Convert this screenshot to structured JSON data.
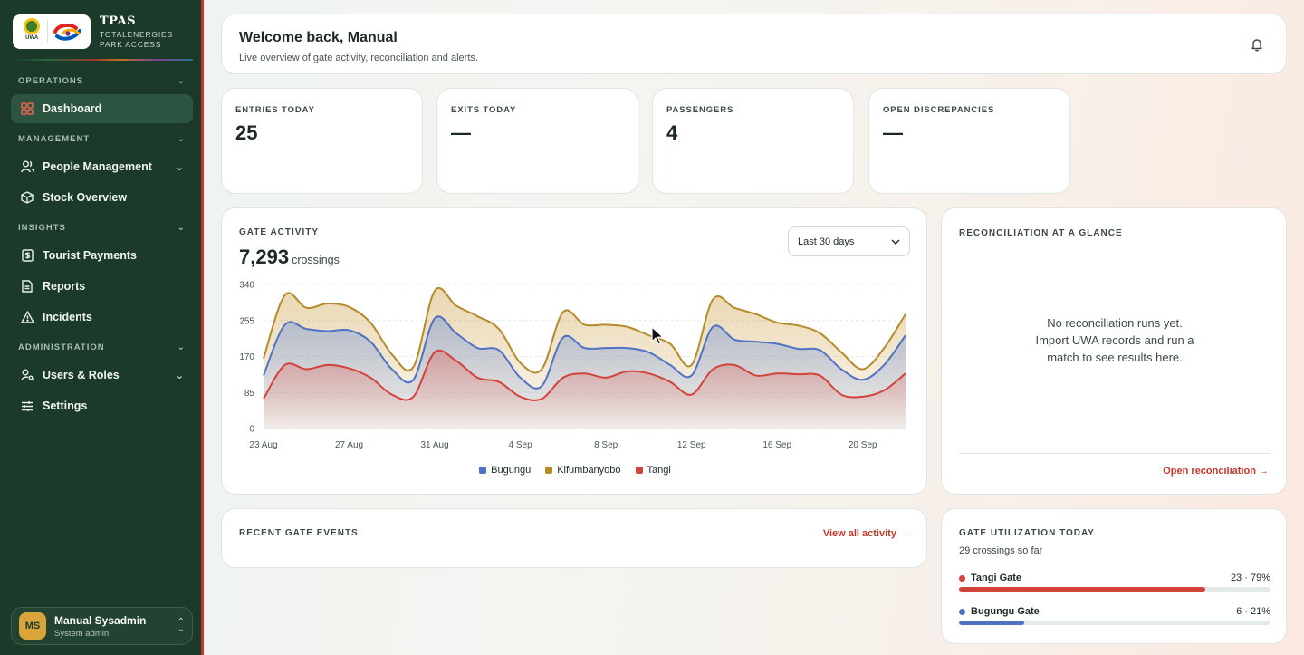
{
  "brand": {
    "title": "TPAS",
    "sub_line1": "TOTALENERGIES",
    "sub_line2": "PARK ACCESS",
    "uwa_logo_text": "UWA"
  },
  "sidebar": {
    "sections": [
      {
        "label": "OPERATIONS"
      },
      {
        "label": "MANAGEMENT"
      },
      {
        "label": "INSIGHTS"
      },
      {
        "label": "ADMINISTRATION"
      }
    ],
    "items": [
      {
        "label": "Dashboard",
        "icon": "grid-icon",
        "active": true
      },
      {
        "label": "People Management",
        "icon": "users-icon"
      },
      {
        "label": "Stock Overview",
        "icon": "box-icon"
      },
      {
        "label": "Tourist Payments",
        "icon": "receipt-icon"
      },
      {
        "label": "Reports",
        "icon": "document-icon"
      },
      {
        "label": "Incidents",
        "icon": "warning-icon"
      },
      {
        "label": "Users & Roles",
        "icon": "user-key-icon"
      },
      {
        "label": "Settings",
        "icon": "sliders-icon"
      }
    ],
    "user": {
      "initials": "MS",
      "name": "Manual Sysadmin",
      "role": "System admin"
    }
  },
  "header": {
    "title": "Welcome back, Manual",
    "subtitle": "Live overview of gate activity, reconciliation and alerts."
  },
  "stats": [
    {
      "label": "ENTRIES TODAY",
      "value": "25"
    },
    {
      "label": "EXITS TODAY",
      "value": "—"
    },
    {
      "label": "PASSENGERS",
      "value": "4"
    },
    {
      "label": "OPEN DISCREPANCIES",
      "value": "—"
    }
  ],
  "gate_activity": {
    "label": "GATE ACTIVITY",
    "total": "7,293",
    "unit": "crossings",
    "range": "Last 30 days"
  },
  "chart_data": {
    "type": "area",
    "stacked": true,
    "y_ticks": [
      0,
      85,
      170,
      255,
      340
    ],
    "ylim": [
      0,
      340
    ],
    "x_tick_labels": [
      "23 Aug",
      "27 Aug",
      "31 Aug",
      "4 Sep",
      "8 Sep",
      "12 Sep",
      "16 Sep",
      "20 Sep"
    ],
    "x": [
      "23 Aug",
      "24 Aug",
      "25 Aug",
      "26 Aug",
      "27 Aug",
      "28 Aug",
      "29 Aug",
      "30 Aug",
      "31 Aug",
      "1 Sep",
      "2 Sep",
      "3 Sep",
      "4 Sep",
      "5 Sep",
      "6 Sep",
      "7 Sep",
      "8 Sep",
      "9 Sep",
      "10 Sep",
      "11 Sep",
      "12 Sep",
      "13 Sep",
      "14 Sep",
      "15 Sep",
      "16 Sep",
      "17 Sep",
      "18 Sep",
      "19 Sep",
      "20 Sep",
      "21 Sep",
      "22 Sep"
    ],
    "series": [
      {
        "name": "Tangi",
        "color": "#d2433a",
        "values": [
          70,
          150,
          140,
          150,
          142,
          120,
          80,
          75,
          180,
          160,
          120,
          110,
          75,
          70,
          120,
          130,
          120,
          135,
          130,
          110,
          80,
          140,
          150,
          125,
          130,
          128,
          125,
          80,
          75,
          90,
          130
        ]
      },
      {
        "name": "Bugungu",
        "color": "#4f72c4",
        "values": [
          55,
          95,
          95,
          80,
          90,
          85,
          60,
          40,
          80,
          65,
          70,
          75,
          45,
          30,
          95,
          60,
          70,
          55,
          50,
          40,
          45,
          100,
          60,
          80,
          70,
          60,
          60,
          60,
          40,
          60,
          90
        ]
      },
      {
        "name": "Kifumbanyobo",
        "color": "#b58a2a",
        "values": [
          40,
          70,
          50,
          65,
          55,
          45,
          35,
          30,
          65,
          65,
          75,
          50,
          35,
          40,
          60,
          55,
          55,
          50,
          40,
          50,
          25,
          65,
          75,
          65,
          50,
          55,
          40,
          40,
          25,
          40,
          50
        ]
      }
    ]
  },
  "reconciliation": {
    "label": "RECONCILIATION AT A GLANCE",
    "empty_line1": "No reconciliation runs yet.",
    "empty_line2": "Import UWA records and run a",
    "empty_line3": "match to see results here.",
    "link": "Open reconciliation →"
  },
  "recent_events": {
    "label": "RECENT GATE EVENTS",
    "link": "View all activity →"
  },
  "utilization": {
    "label": "GATE UTILIZATION TODAY",
    "subtitle": "29 crossings so far",
    "gates": [
      {
        "name": "Tangi Gate",
        "count": "23",
        "percent_text": "79%",
        "percent": 79,
        "color": "#d2433a"
      },
      {
        "name": "Bugungu Gate",
        "count": "6",
        "percent_text": "21%",
        "percent": 21,
        "color": "#4f72c4"
      }
    ]
  }
}
